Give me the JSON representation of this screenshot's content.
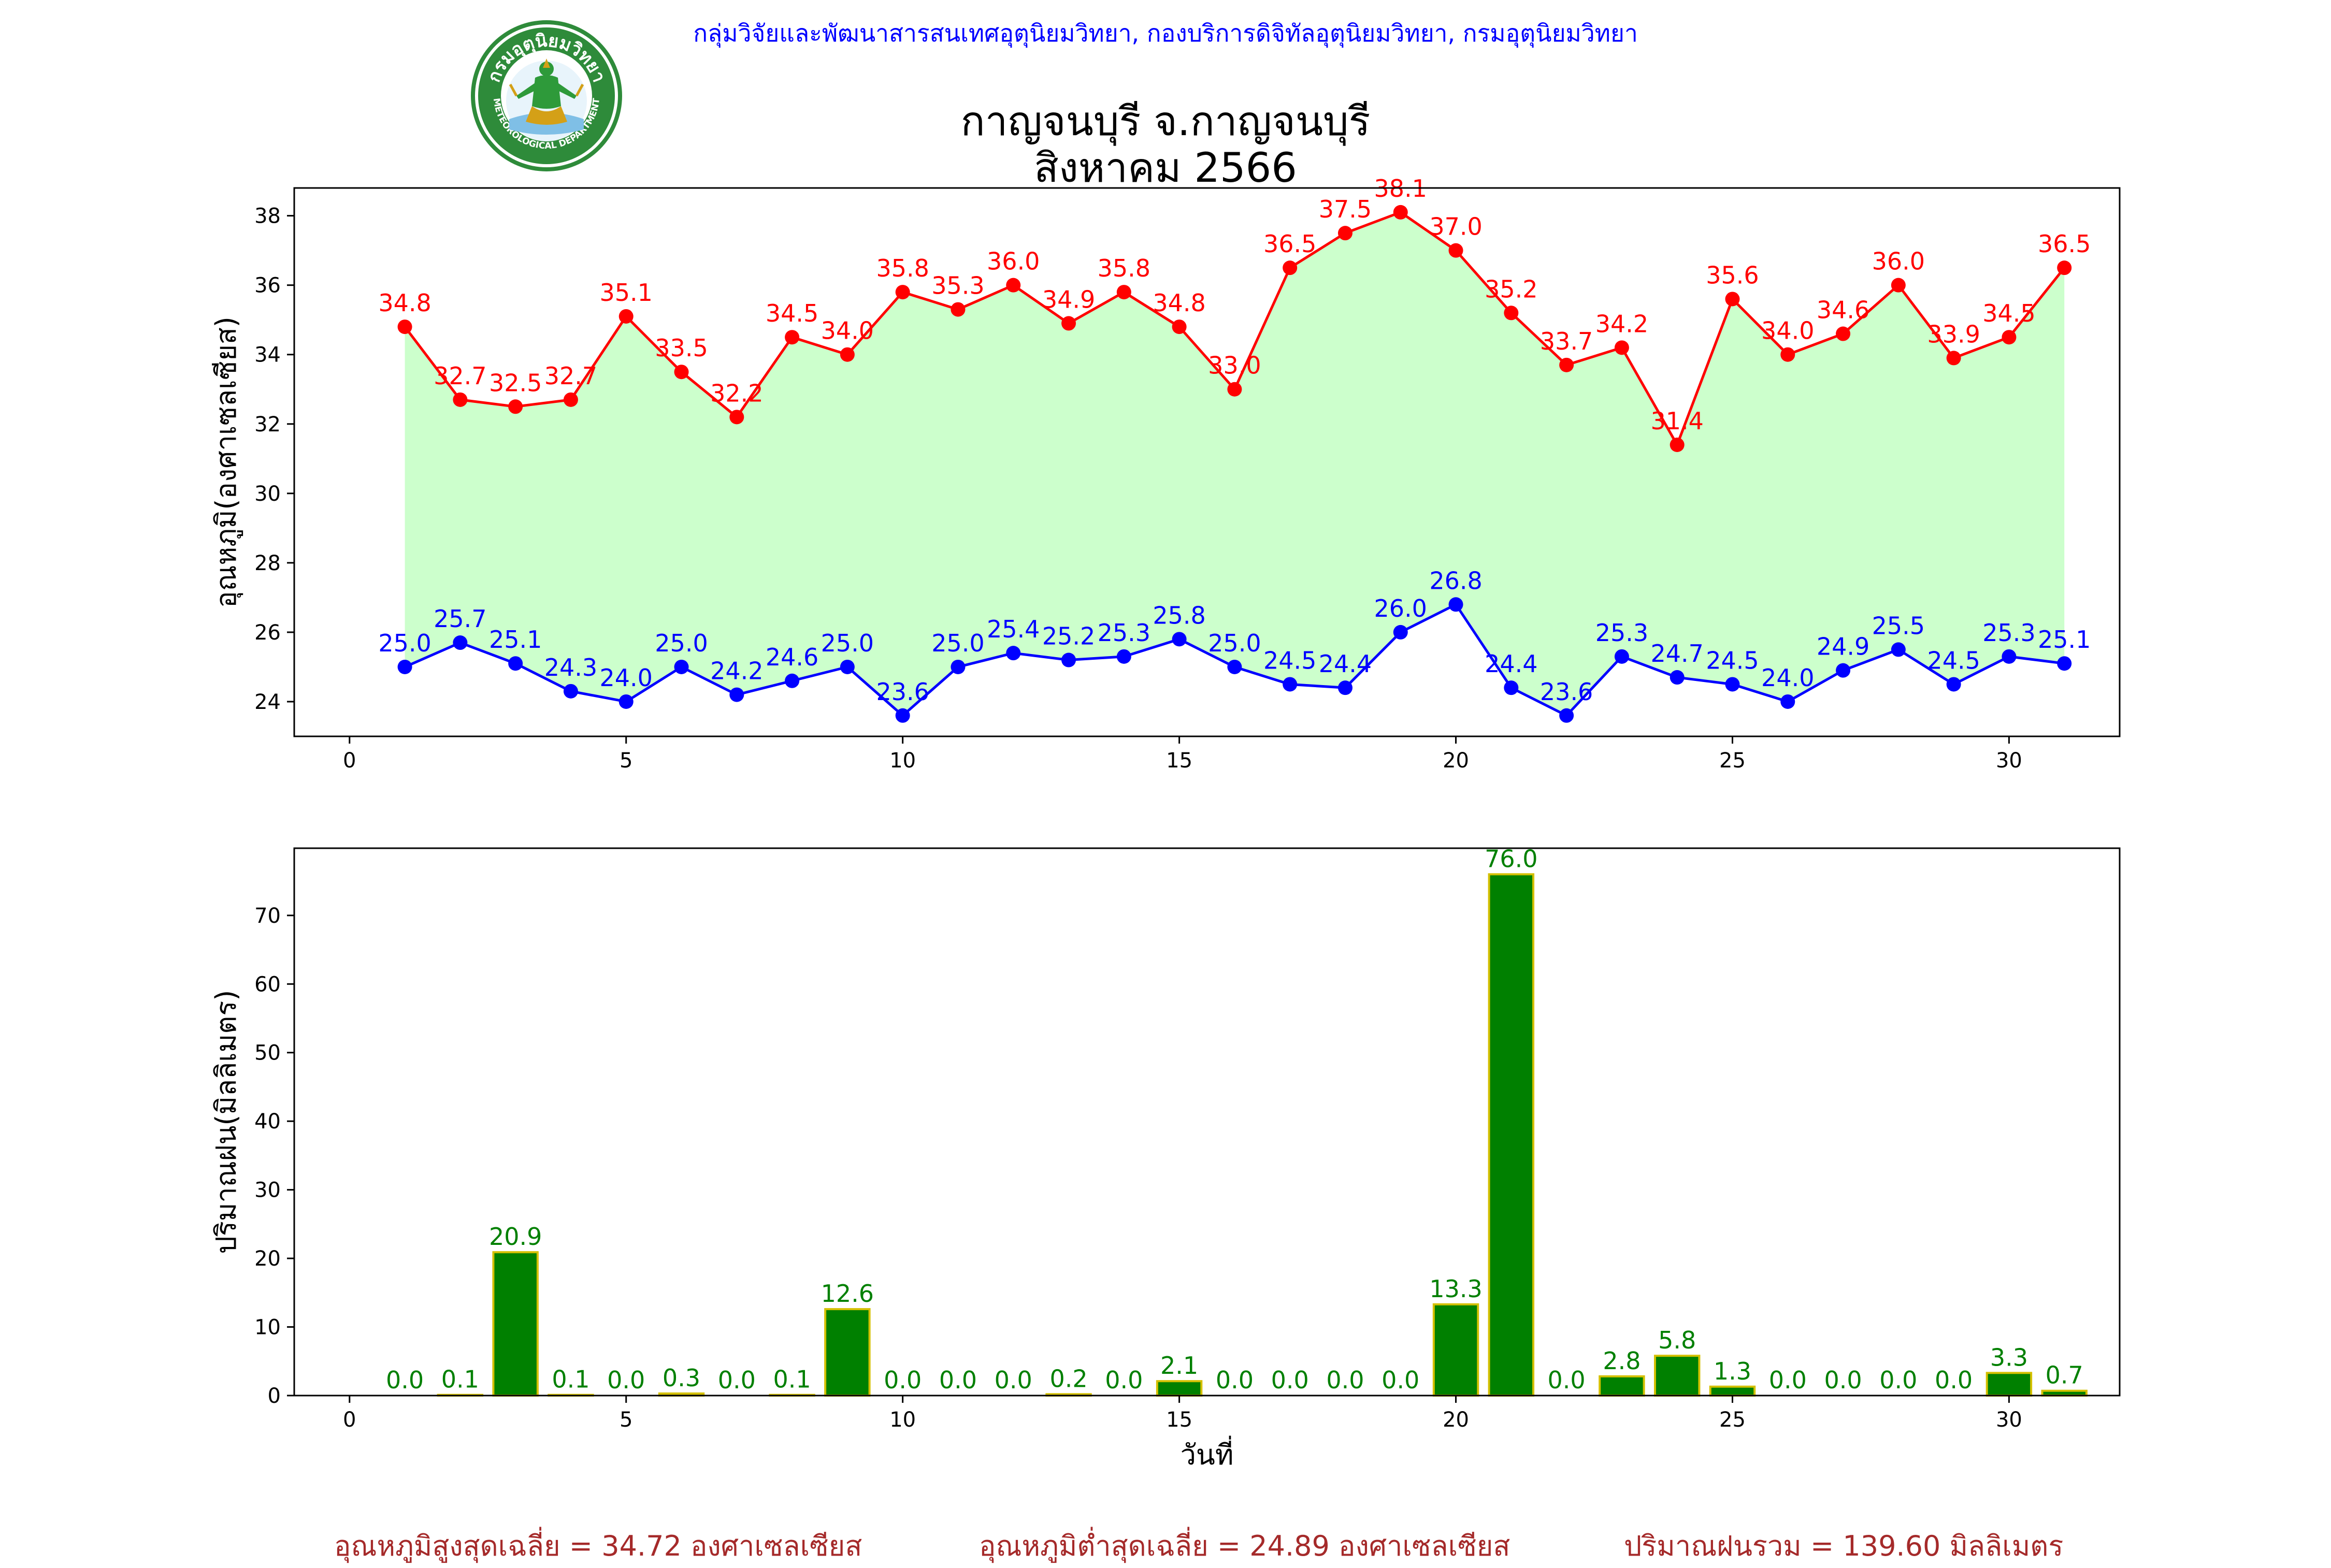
{
  "header": {
    "credit": "กลุ่มวิจัยและพัฒนาสารสนเทศอุตุนิยมวิทยา, กองบริการดิจิทัลอุตุนิยมวิทยา, กรมอุตุนิยมวิทยา",
    "logo_text_top": "กรมอุตุนิยมวิทยา",
    "logo_text_bottom": "METEOROLOGICAL DEPARTMENT"
  },
  "colors": {
    "max_line": "#ff0000",
    "min_line": "#0000ff",
    "fill": "#ccffcc",
    "bar": "#008000",
    "bar_edge": "#d4c000",
    "footer": "#a52a2a"
  },
  "footer": {
    "avg_max": "อุณหภูมิสูงสุดเฉลี่ย = 34.72 องศาเซลเซียส",
    "avg_min": "อุณหภูมิต่ำสุดเฉลี่ย = 24.89 องศาเซลเซียส",
    "rain_total": "ปริมาณฝนรวม = 139.60 มิลลิเมตร"
  },
  "chart_data": [
    {
      "type": "line",
      "title": "กาญจนบุรี จ.กาญจนบุรี",
      "subtitle": "สิงหาคม 2566",
      "ylabel": "อุณหภูมิ(องศาเซลเซียส)",
      "xlabel": "",
      "xlim": [
        -1,
        32
      ],
      "ylim": [
        23,
        38.8
      ],
      "xticks": [
        0,
        5,
        10,
        15,
        20,
        25,
        30
      ],
      "yticks": [
        24,
        26,
        28,
        30,
        32,
        34,
        36,
        38
      ],
      "grid": false,
      "fill_between": true,
      "x": [
        1,
        2,
        3,
        4,
        5,
        6,
        7,
        8,
        9,
        10,
        11,
        12,
        13,
        14,
        15,
        16,
        17,
        18,
        19,
        20,
        21,
        22,
        23,
        24,
        25,
        26,
        27,
        28,
        29,
        30,
        31
      ],
      "series": [
        {
          "values": [
            34.8,
            32.7,
            32.5,
            32.7,
            35.1,
            33.5,
            32.2,
            34.5,
            34.0,
            35.8,
            35.3,
            36.0,
            34.9,
            35.8,
            34.8,
            33.0,
            36.5,
            37.5,
            38.1,
            37.0,
            35.2,
            33.7,
            34.2,
            31.4,
            35.6,
            34.0,
            34.6,
            36.0,
            33.9,
            34.5,
            36.5
          ]
        },
        {
          "values": [
            25.0,
            25.7,
            25.1,
            24.3,
            24.0,
            25.0,
            24.2,
            24.6,
            25.0,
            23.6,
            25.0,
            25.4,
            25.2,
            25.3,
            25.8,
            25.0,
            24.5,
            24.4,
            26.0,
            26.8,
            24.4,
            23.6,
            25.3,
            24.7,
            24.5,
            24.0,
            24.9,
            25.5,
            24.5,
            25.3,
            25.1
          ]
        }
      ]
    },
    {
      "type": "bar",
      "ylabel": "ปริมาณฝน(มิลลิเมตร)",
      "xlabel": "วันที่",
      "xlim": [
        -1,
        32
      ],
      "ylim": [
        0,
        79.8
      ],
      "xticks": [
        0,
        5,
        10,
        15,
        20,
        25,
        30
      ],
      "yticks": [
        0,
        10,
        20,
        30,
        40,
        50,
        60,
        70
      ],
      "grid": false,
      "x": [
        1,
        2,
        3,
        4,
        5,
        6,
        7,
        8,
        9,
        10,
        11,
        12,
        13,
        14,
        15,
        16,
        17,
        18,
        19,
        20,
        21,
        22,
        23,
        24,
        25,
        26,
        27,
        28,
        29,
        30,
        31
      ],
      "values": [
        0.0,
        0.1,
        20.9,
        0.1,
        0.0,
        0.3,
        0.0,
        0.1,
        12.6,
        0.0,
        0.0,
        0.0,
        0.2,
        0.0,
        2.1,
        0.0,
        0.0,
        0.0,
        0.0,
        13.3,
        76.0,
        0.0,
        2.8,
        5.8,
        1.3,
        0.0,
        0.0,
        0.0,
        0.0,
        3.3,
        0.7
      ]
    }
  ]
}
